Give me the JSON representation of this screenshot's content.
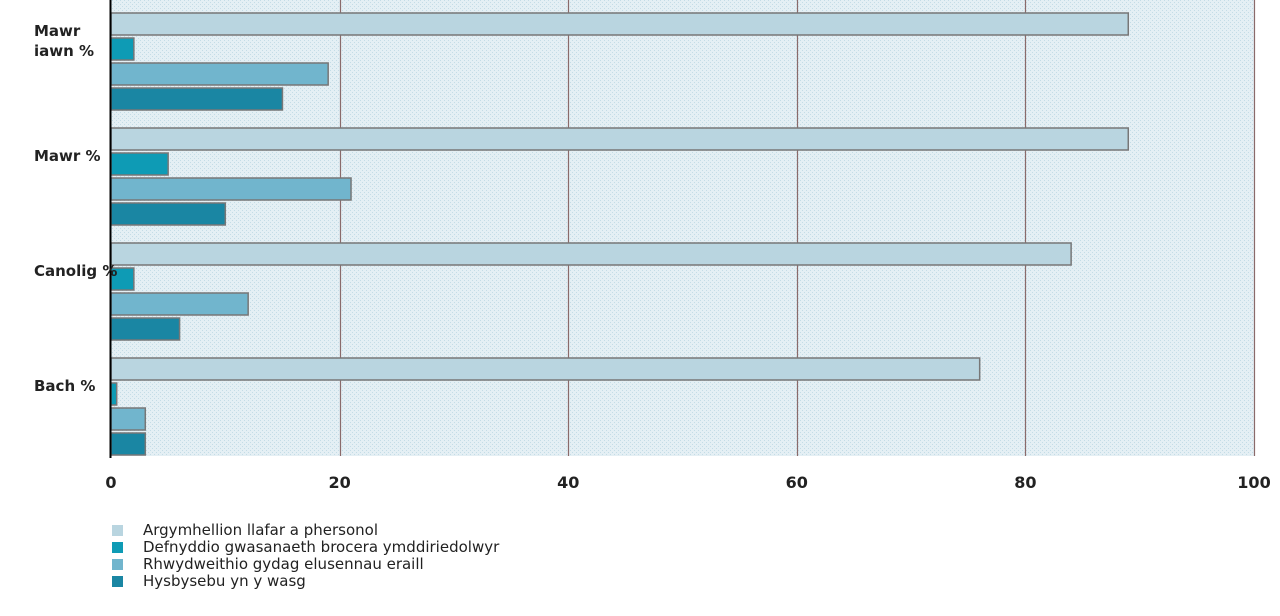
{
  "chart_data": {
    "type": "bar",
    "orientation": "horizontal",
    "categories": [
      "Mawr\niawn %",
      "Mawr %",
      "Canolig %",
      "Bach %"
    ],
    "series": [
      {
        "name": "Argymhellion llafar a phersonol",
        "color": "#b9d5e0",
        "values": [
          89,
          89,
          84,
          76
        ]
      },
      {
        "name": "Defnyddio gwasanaeth brocera ymddiriedolwyr",
        "color": "#0e9bb5",
        "values": [
          2,
          5,
          2,
          0.5
        ]
      },
      {
        "name": "Rhwydweithio gydag elusennau eraill",
        "color": "#71b5cd",
        "values": [
          19,
          21,
          12,
          3
        ]
      },
      {
        "name": "Hysbysebu yn y wasg",
        "color": "#1a86a3",
        "values": [
          15,
          10,
          6,
          3
        ]
      }
    ],
    "xlim": [
      0,
      100
    ],
    "xticks": [
      0,
      20,
      40,
      60,
      80,
      100
    ],
    "grid": true,
    "legend_position": "bottom-left",
    "title": "",
    "xlabel": "",
    "ylabel": ""
  }
}
